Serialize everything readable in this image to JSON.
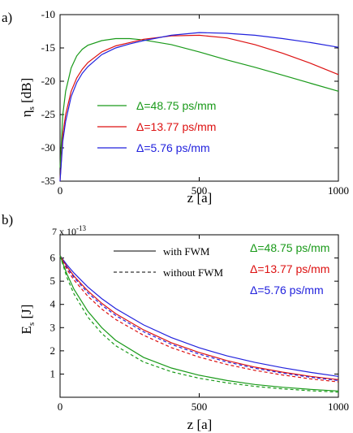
{
  "chart_data": [
    {
      "type": "line",
      "panel_label": "a)",
      "xlabel": "z [a]",
      "ylabel": "η",
      "ylabel_sub": "s",
      "ylabel_unit": " [dB]",
      "xlim": [
        0,
        1000
      ],
      "ylim": [
        -35,
        -10
      ],
      "xticks": [
        0,
        500,
        1000
      ],
      "xtick_labels": [
        "0",
        "500",
        "1000"
      ],
      "yticks": [
        -35,
        -30,
        -25,
        -20,
        -15,
        -10
      ],
      "ytick_labels": [
        "-35",
        "-30",
        "-25",
        "-20",
        "-15",
        "-10"
      ],
      "grid": false,
      "legend_position": "center-left",
      "series": [
        {
          "name": "Δ=48.75 ps/mm",
          "color": "#1a9a1a",
          "x": [
            0,
            10,
            20,
            40,
            60,
            80,
            100,
            150,
            200,
            250,
            300,
            400,
            500,
            600,
            700,
            800,
            900,
            1000
          ],
          "y": [
            -33,
            -25,
            -21.5,
            -18,
            -16.2,
            -15.2,
            -14.6,
            -13.9,
            -13.6,
            -13.6,
            -13.8,
            -14.5,
            -15.6,
            -16.8,
            -17.9,
            -19.1,
            -20.3,
            -21.5
          ]
        },
        {
          "name": "Δ=13.77 ps/mm",
          "color": "#dd1111",
          "x": [
            0,
            10,
            20,
            40,
            60,
            80,
            100,
            150,
            200,
            250,
            300,
            400,
            500,
            600,
            700,
            800,
            900,
            1000
          ],
          "y": [
            -35,
            -28,
            -25,
            -21.5,
            -19.5,
            -18.2,
            -17.2,
            -15.6,
            -14.7,
            -14.2,
            -13.7,
            -13.2,
            -13.1,
            -13.5,
            -14.5,
            -15.8,
            -17.3,
            -19
          ]
        },
        {
          "name": "Δ=5.76 ps/mm",
          "color": "#2222dd",
          "x": [
            0,
            10,
            20,
            40,
            60,
            80,
            100,
            150,
            200,
            250,
            300,
            400,
            500,
            600,
            700,
            800,
            900,
            1000
          ],
          "y": [
            -35,
            -29,
            -26,
            -22.3,
            -20.2,
            -18.8,
            -17.8,
            -16,
            -15,
            -14.4,
            -13.9,
            -13.1,
            -12.7,
            -12.8,
            -13.1,
            -13.6,
            -14.2,
            -14.9
          ]
        }
      ]
    },
    {
      "type": "line",
      "panel_label": "b)",
      "xlabel": "z [a]",
      "ylabel": "E",
      "ylabel_sub": "s",
      "ylabel_unit": " [J]",
      "scale_label": "7 x 10",
      "scale_exp": "-13",
      "xlim": [
        0,
        1000
      ],
      "ylim": [
        0,
        7
      ],
      "xticks": [
        0,
        500,
        1000
      ],
      "xtick_labels": [
        "0",
        "500",
        "1000"
      ],
      "yticks": [
        1,
        2,
        3,
        4,
        5,
        6
      ],
      "ytick_labels": [
        "1",
        "2",
        "3",
        "4",
        "5",
        "6"
      ],
      "grid": false,
      "legend_position": "top-right",
      "style_legend": [
        {
          "label": "with FWM",
          "dash": "solid"
        },
        {
          "label": "without FWM",
          "dash": "dashed"
        }
      ],
      "color_legend": [
        {
          "label": "Δ=48.75 ps/mm",
          "color": "#1a9a1a"
        },
        {
          "label": "Δ=13.77 ps/mm",
          "color": "#dd1111"
        },
        {
          "label": "Δ=5.76 ps/mm",
          "color": "#2222dd"
        }
      ],
      "x": [
        0,
        25,
        50,
        100,
        150,
        200,
        300,
        400,
        500,
        600,
        700,
        800,
        900,
        1000
      ],
      "series": [
        {
          "name": "Δ=5.76 ps/mm",
          "fwm": "with",
          "color": "#2222dd",
          "dash": "solid",
          "y": [
            6.1,
            5.7,
            5.35,
            4.75,
            4.25,
            3.82,
            3.12,
            2.57,
            2.13,
            1.78,
            1.5,
            1.27,
            1.07,
            0.9
          ]
        },
        {
          "name": "Δ=13.77 ps/mm",
          "fwm": "with",
          "color": "#dd1111",
          "dash": "solid",
          "y": [
            6.1,
            5.62,
            5.22,
            4.58,
            4.05,
            3.6,
            2.9,
            2.35,
            1.93,
            1.58,
            1.3,
            1.08,
            0.9,
            0.76
          ]
        },
        {
          "name": "Δ=5.76 ps/mm",
          "fwm": "without",
          "color": "#2222dd",
          "dash": "dashed",
          "y": [
            6.1,
            5.58,
            5.16,
            4.5,
            3.97,
            3.52,
            2.82,
            2.28,
            1.86,
            1.52,
            1.25,
            1.04,
            0.86,
            0.72
          ]
        },
        {
          "name": "Δ=13.77 ps/mm",
          "fwm": "without",
          "color": "#dd1111",
          "dash": "dashed",
          "y": [
            6.1,
            5.5,
            5.05,
            4.35,
            3.8,
            3.35,
            2.67,
            2.14,
            1.73,
            1.41,
            1.16,
            0.96,
            0.79,
            0.66
          ]
        },
        {
          "name": "Δ=48.75 ps/mm",
          "fwm": "with",
          "color": "#1a9a1a",
          "dash": "solid",
          "y": [
            6.1,
            5.3,
            4.65,
            3.7,
            3.0,
            2.45,
            1.72,
            1.26,
            0.95,
            0.72,
            0.55,
            0.43,
            0.34,
            0.27
          ]
        },
        {
          "name": "Δ=48.75 ps/mm",
          "fwm": "without",
          "color": "#1a9a1a",
          "dash": "dashed",
          "y": [
            6.1,
            5.15,
            4.45,
            3.45,
            2.75,
            2.22,
            1.52,
            1.1,
            0.82,
            0.62,
            0.47,
            0.36,
            0.28,
            0.22
          ]
        }
      ]
    }
  ]
}
